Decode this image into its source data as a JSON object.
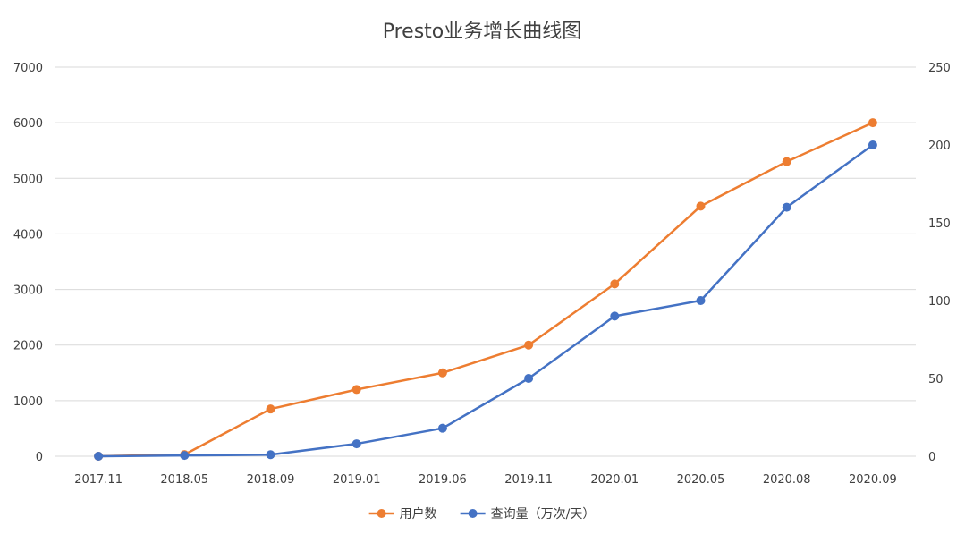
{
  "chart_data": {
    "type": "line",
    "title": "Presto业务增长曲线图",
    "categories": [
      "2017.11",
      "2018.05",
      "2018.09",
      "2019.01",
      "2019.06",
      "2019.11",
      "2020.01",
      "2020.05",
      "2020.08",
      "2020.09"
    ],
    "y_left": {
      "ticks": [
        0,
        1000,
        2000,
        3000,
        4000,
        5000,
        6000,
        7000
      ],
      "range": [
        0,
        7000
      ]
    },
    "y_right": {
      "ticks": [
        0,
        50,
        100,
        150,
        200,
        250
      ],
      "range": [
        0,
        250
      ]
    },
    "grid": true,
    "legend": "bottom",
    "series": [
      {
        "name": "用户数",
        "axis": "left",
        "color": "#ED7D31",
        "values": [
          0,
          30,
          850,
          1200,
          1500,
          2000,
          3100,
          4500,
          5300,
          6000
        ]
      },
      {
        "name": "查询量（万次/天）",
        "axis": "right",
        "color": "#4472C4",
        "values": [
          0,
          0.5,
          1,
          8,
          18,
          50,
          90,
          100,
          160,
          200
        ]
      }
    ]
  }
}
